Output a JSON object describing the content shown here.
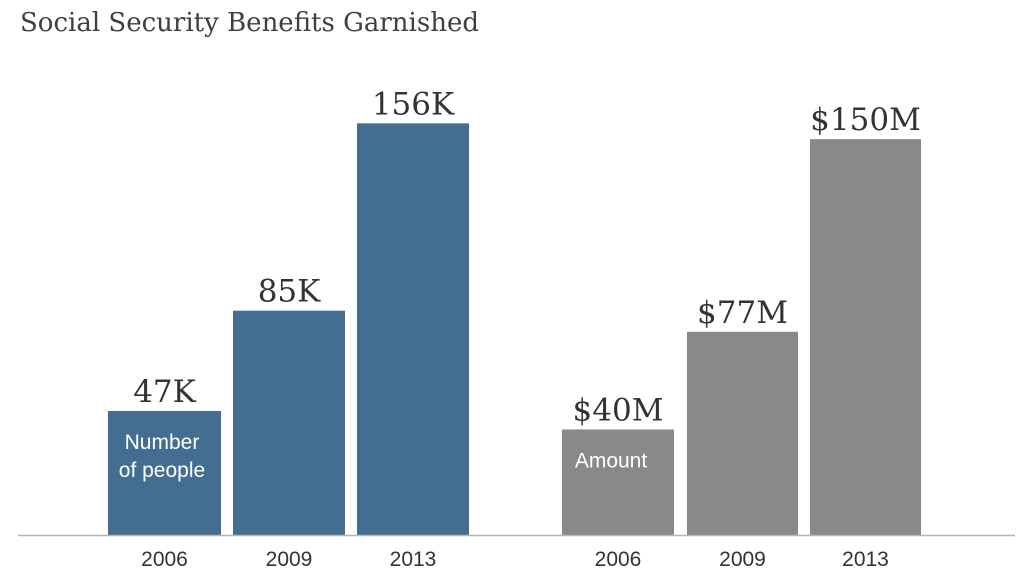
{
  "colors": {
    "background": "#ffffff",
    "people_bar": "#436e92",
    "amount_bar": "#898989",
    "baseline": "#b5b5b5"
  },
  "chart_data": {
    "title": "Social Security Benefits Garnished",
    "type": "bar",
    "panels": [
      {
        "type": "bar",
        "categories": [
          "2006",
          "2009",
          "2013"
        ],
        "series": [
          {
            "name": "Number of people",
            "name_lines": [
              "Number",
              "of people"
            ],
            "values": [
              47000,
              85000,
              156000
            ],
            "labels": [
              "47K",
              "85K",
              "156K"
            ],
            "color": "#436e92"
          }
        ],
        "ylim": [
          0,
          180000
        ]
      },
      {
        "type": "bar",
        "categories": [
          "2006",
          "2009",
          "2013"
        ],
        "series": [
          {
            "name": "Amount",
            "name_lines": [
              "Amount"
            ],
            "values": [
              40,
              77,
              150
            ],
            "labels": [
              "$40M",
              "$77M",
              "$150M"
            ],
            "color": "#898989"
          }
        ],
        "ylim": [
          0,
          180
        ]
      }
    ]
  }
}
